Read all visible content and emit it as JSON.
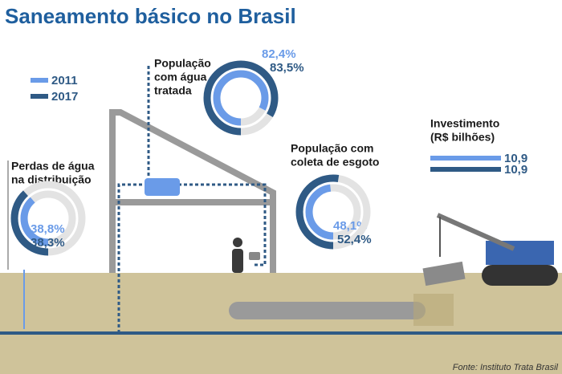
{
  "title": "Saneamento básico no Brasil",
  "source": "Fonte: Instituto Trata Brasil",
  "legend": [
    {
      "name": "2011",
      "color": "#6a9be8"
    },
    {
      "name": "2017",
      "color": "#2f5a85"
    }
  ],
  "chart_data": [
    {
      "type": "donut",
      "title_lines": [
        "Perdas de água",
        "na distribuição"
      ],
      "values": [
        38.8,
        38.3
      ],
      "value_labels": [
        "38,8%",
        "38,3%"
      ]
    },
    {
      "type": "donut",
      "title_lines": [
        "População",
        "com água",
        "tratada"
      ],
      "values": [
        82.4,
        83.5
      ],
      "value_labels": [
        "82,4%",
        "83,5%"
      ]
    },
    {
      "type": "donut",
      "title_lines": [
        "População com",
        "coleta de esgoto"
      ],
      "values": [
        48.1,
        52.4
      ],
      "value_labels": [
        "48,1%",
        "52,4%"
      ]
    },
    {
      "type": "bar",
      "title_lines": [
        "Investimento",
        "(R$ bilhões)"
      ],
      "values": [
        10.9,
        10.9
      ],
      "value_labels": [
        "10,9",
        "10,9"
      ]
    }
  ]
}
